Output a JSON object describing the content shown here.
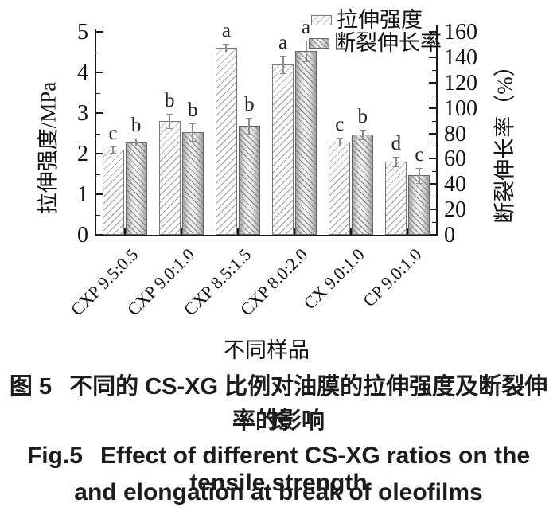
{
  "chart_data": {
    "type": "bar",
    "categories": [
      "CXP 9.5:0.5",
      "CXP 9.0:1.0",
      "CXP 8.5:1.5",
      "CXP 8.0:2.0",
      "CX 9.0:1.0",
      "CP 9.0:1.0"
    ],
    "series": [
      {
        "name": "拉伸强度",
        "axis": "left",
        "values": [
          2.1,
          2.8,
          4.6,
          4.2,
          2.3,
          1.8
        ],
        "errors": [
          0.08,
          0.18,
          0.1,
          0.22,
          0.1,
          0.12
        ],
        "letters": [
          "c",
          "b",
          "a",
          "a",
          "c",
          "d"
        ],
        "style": "diagonal-hatch-forward"
      },
      {
        "name": "断裂伸长率",
        "axis": "right",
        "values": [
          73,
          81,
          86,
          145,
          79,
          47
        ],
        "errors": [
          3,
          7,
          6,
          8,
          4,
          6
        ],
        "letters": [
          "b",
          "b",
          "b",
          "a",
          "b",
          "c"
        ],
        "style": "diagonal-hatch-back-gradient"
      }
    ],
    "xlabel": "不同样品",
    "ylabel_left": "拉伸强度/MPa",
    "ylabel_right": "断裂伸长率（%）",
    "ylim_left": [
      0,
      5
    ],
    "yticks_left": [
      0,
      1,
      2,
      3,
      4,
      5
    ],
    "yminor_step_left": 0.5,
    "ylim_right": [
      0,
      160
    ],
    "yticks_right": [
      0,
      20,
      40,
      60,
      80,
      100,
      120,
      140,
      160
    ],
    "yminor_step_right": 10,
    "grid": false,
    "legend_position": "top-right",
    "x_tick_label_rotation": -45
  },
  "caption": {
    "fig_label_cn": "图 5",
    "cn_line1": "不同的 CS-XG 比例对油膜的拉伸强度及断裂伸长",
    "cn_line2": "率的影响",
    "fig_label_en": "Fig.5",
    "en_line1": "Effect of different CS-XG ratios on the tensile strength",
    "en_line2": "and elongation at break of oleofilms"
  },
  "colors": {
    "ink": "#1a1a1a",
    "bar_outline": "#6e6e6e",
    "hatch_line": "#8f8f8f",
    "error_bar": "#8c8c8c",
    "background": "#ffffff"
  }
}
